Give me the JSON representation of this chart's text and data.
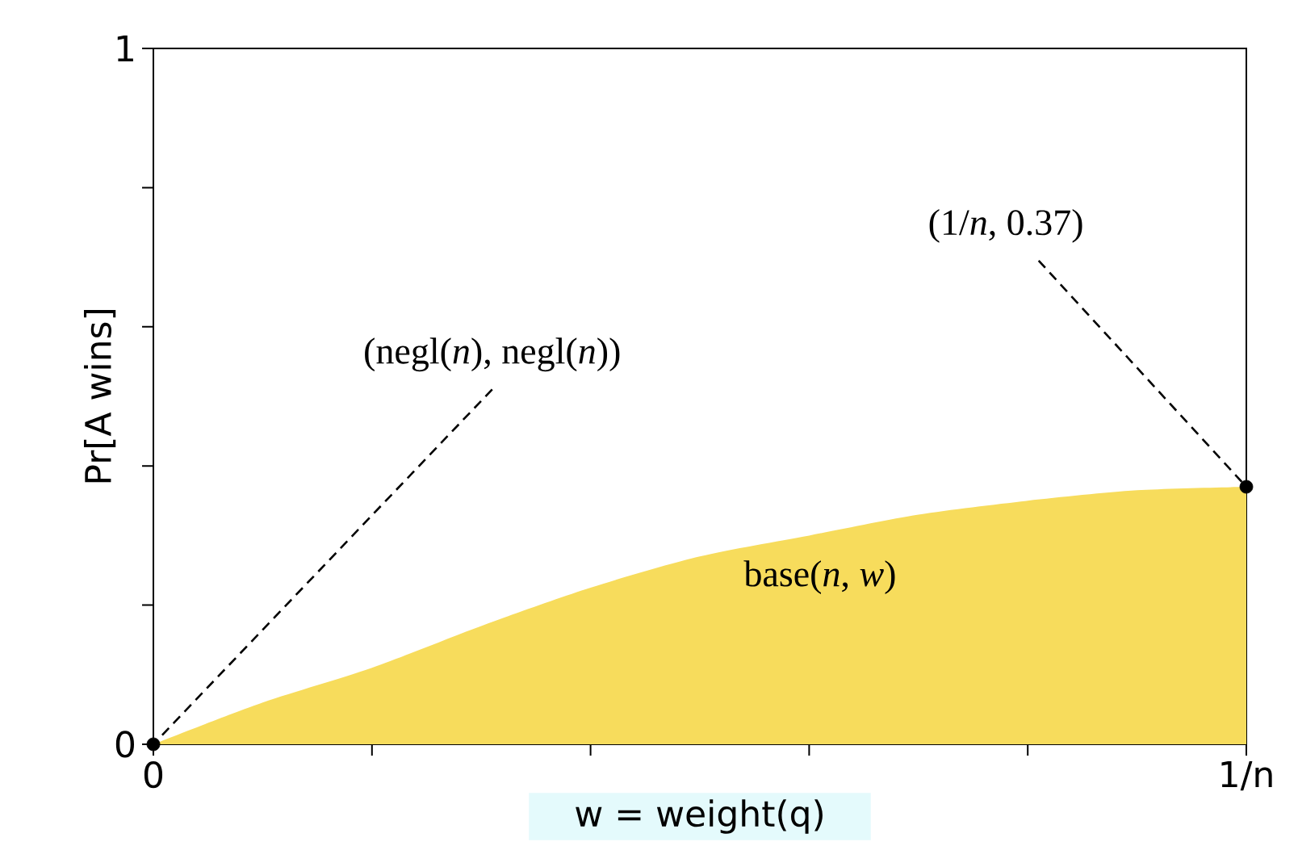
{
  "chart_data": {
    "type": "area",
    "xlabel": "w = weight(q)",
    "ylabel": "Pr[A wins]",
    "xlim": [
      0,
      1
    ],
    "ylim": [
      0,
      1
    ],
    "xticks": [
      {
        "value": 0,
        "label": "0"
      },
      {
        "value": 0.2,
        "label": null
      },
      {
        "value": 0.4,
        "label": null
      },
      {
        "value": 0.6,
        "label": null
      },
      {
        "value": 0.8,
        "label": null
      },
      {
        "value": 1,
        "label": "1/n"
      }
    ],
    "yticks": [
      {
        "value": 0,
        "label": "0"
      },
      {
        "value": 0.2,
        "label": null
      },
      {
        "value": 0.4,
        "label": null
      },
      {
        "value": 0.6,
        "label": null
      },
      {
        "value": 0.8,
        "label": null
      },
      {
        "value": 1,
        "label": "1"
      }
    ],
    "series": [
      {
        "color": "#f7dc5c",
        "x": [
          0,
          0.1,
          0.2,
          0.3,
          0.4,
          0.5,
          0.6,
          0.7,
          0.8,
          0.9,
          1
        ],
        "values": [
          0,
          0.06,
          0.11,
          0.17,
          0.225,
          0.27,
          0.3,
          0.33,
          0.35,
          0.365,
          0.37
        ]
      },
      {
        "type": "scatter",
        "marker": "circle",
        "color": "#000000",
        "x": [
          0,
          1
        ],
        "values": [
          0,
          0.37
        ]
      }
    ],
    "annotations": [
      {
        "text": "(negl(*n*), negl(*n*))",
        "x": 0,
        "y": 0
      },
      {
        "text": "(1/*n*, 0.37)",
        "x": 1,
        "y": 0.37
      },
      "base(*n*, *w*)"
    ]
  }
}
